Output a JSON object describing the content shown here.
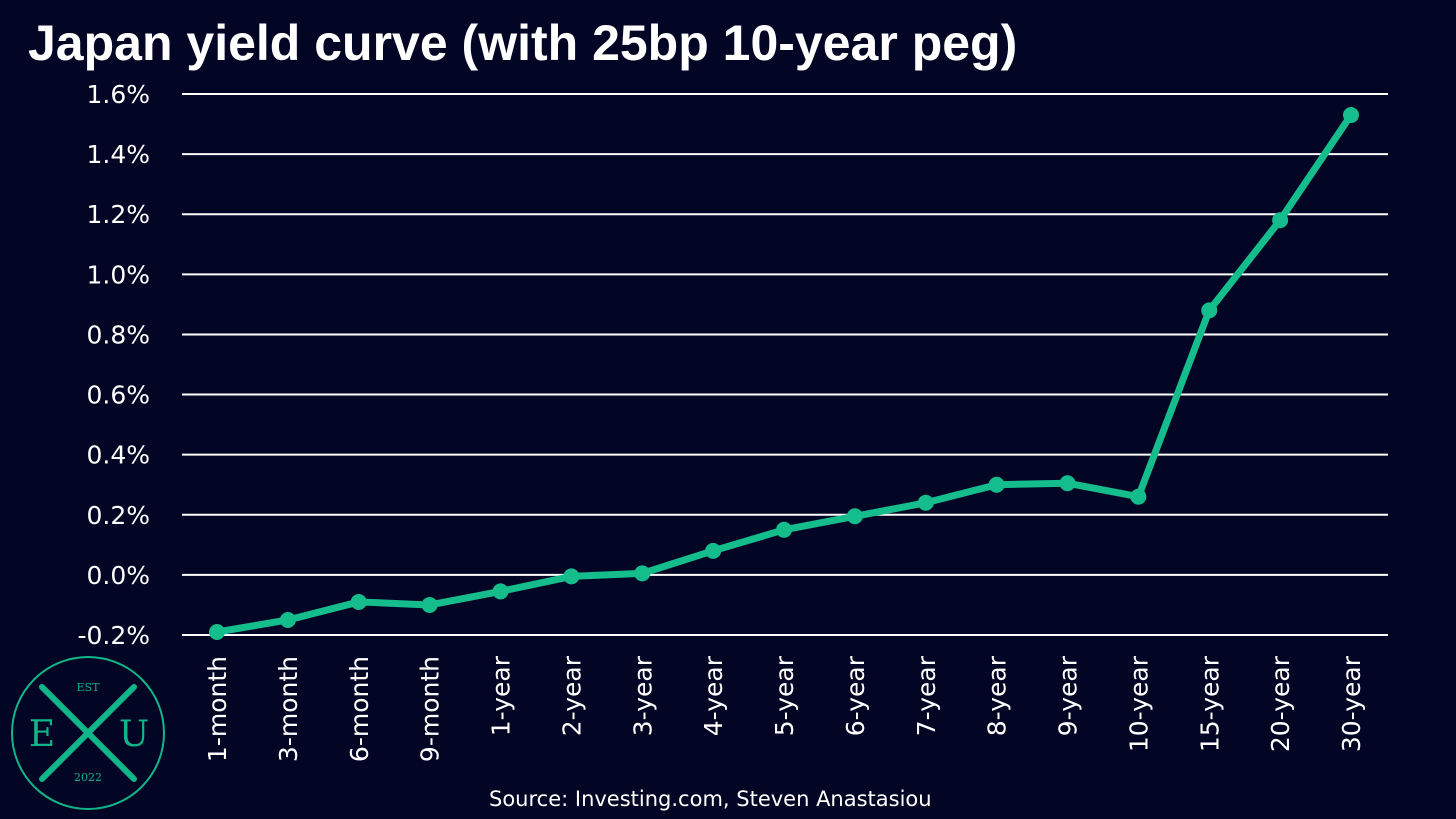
{
  "colors": {
    "background": "#030524",
    "line": "#15bd8c",
    "grid": "#ffffff",
    "text": "#ffffff",
    "logo": "#12b589"
  },
  "chart_data": {
    "type": "line",
    "title": "Japan yield curve (with 25bp 10-year peg)",
    "xlabel": "",
    "ylabel": "",
    "categories": [
      "1-month",
      "3-month",
      "6-month",
      "9-month",
      "1-year",
      "2-year",
      "3-year",
      "4-year",
      "5-year",
      "6-year",
      "7-year",
      "8-year",
      "9-year",
      "10-year",
      "15-year",
      "20-year",
      "30-year"
    ],
    "series": [
      {
        "values": [
          -0.19,
          -0.15,
          -0.09,
          -0.1,
          -0.055,
          -0.005,
          0.005,
          0.08,
          0.15,
          0.195,
          0.24,
          0.3,
          0.305,
          0.26,
          0.88,
          1.18,
          1.53
        ]
      }
    ],
    "ylim": [
      -0.2,
      1.6
    ],
    "yticks": [
      -0.2,
      0.0,
      0.2,
      0.4,
      0.6,
      0.8,
      1.0,
      1.2,
      1.4,
      1.6
    ],
    "ytick_labels": [
      "-0.2%",
      "0.0%",
      "0.2%",
      "0.4%",
      "0.6%",
      "0.8%",
      "1.0%",
      "1.2%",
      "1.4%",
      "1.6%"
    ],
    "grid": true,
    "markers": true
  },
  "source_text": "Source: Investing.com, Steven Anastasiou",
  "logo": {
    "est": "EST",
    "left_letter": "E",
    "right_letter": "U",
    "year": "2022"
  }
}
